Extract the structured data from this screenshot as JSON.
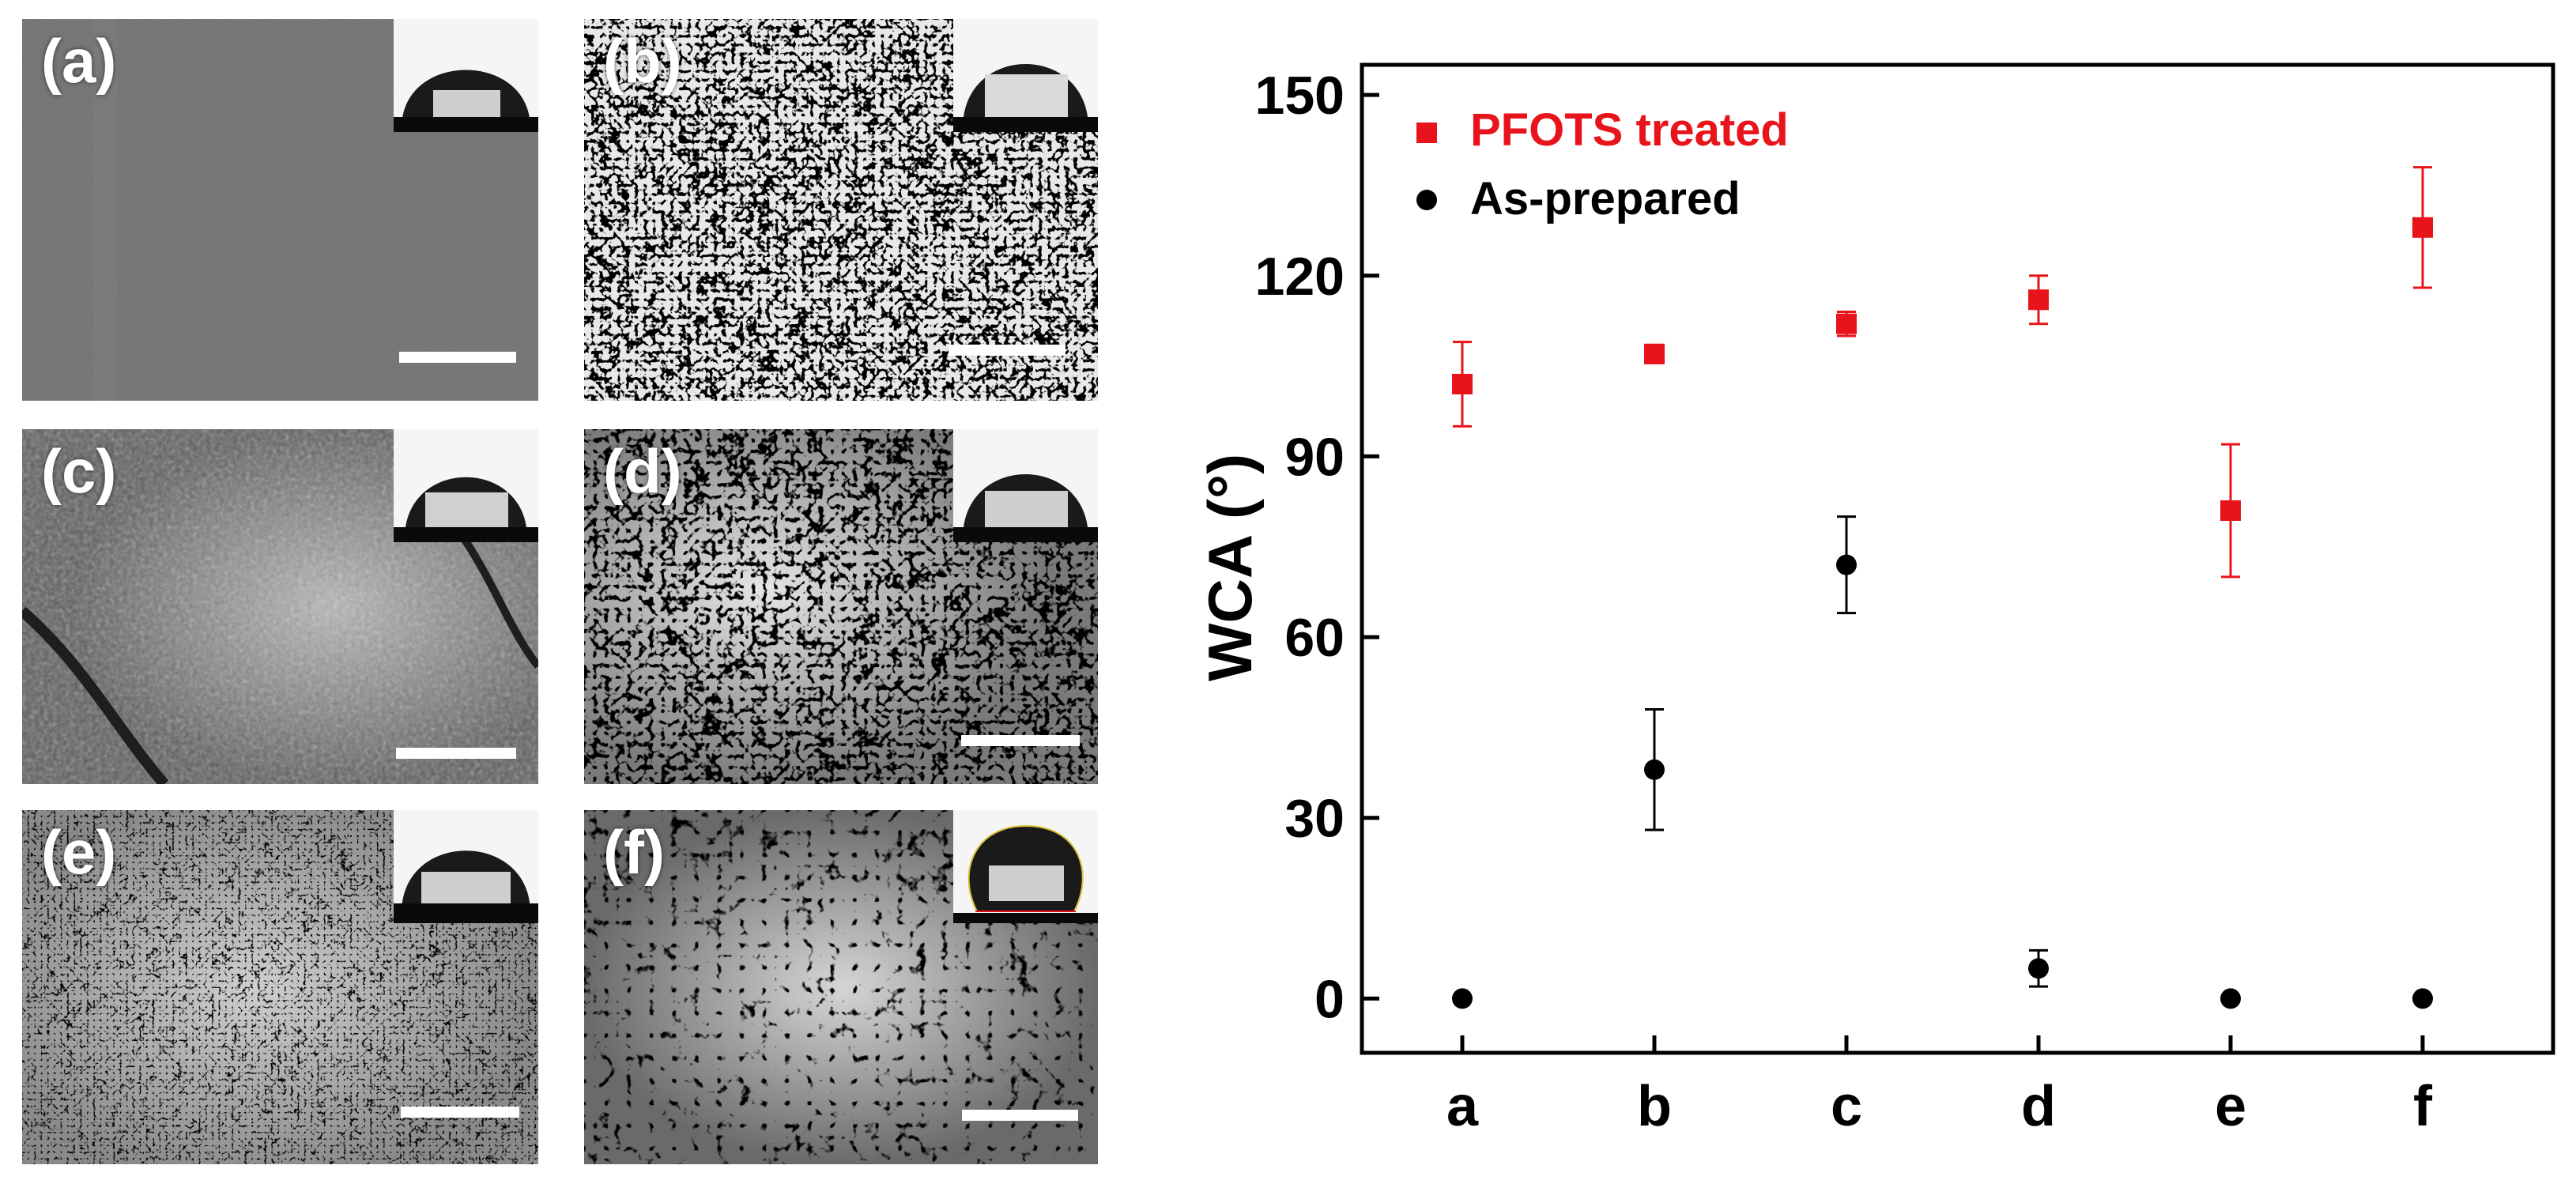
{
  "panels": [
    {
      "id": "a",
      "label": "(a)",
      "texture": "smooth"
    },
    {
      "id": "b",
      "label": "(b)",
      "texture": "porous"
    },
    {
      "id": "c",
      "label": "(c)",
      "texture": "fine-wrinkled"
    },
    {
      "id": "d",
      "label": "(d)",
      "texture": "worm-like"
    },
    {
      "id": "e",
      "label": "(e)",
      "texture": "flake-like"
    },
    {
      "id": "f",
      "label": "(f)",
      "texture": "coarse-flower"
    }
  ],
  "chart_data": {
    "type": "scatter",
    "categories": [
      "a",
      "b",
      "c",
      "d",
      "e",
      "f"
    ],
    "ylabel": "WCA (°)",
    "xlabel": "",
    "ylim": [
      -9,
      155
    ],
    "yticks": [
      0,
      30,
      60,
      90,
      120,
      150
    ],
    "legend_position": "top-left",
    "series": [
      {
        "name": "PFOTS treated",
        "marker": "square",
        "color": "#e8141b",
        "values": [
          102,
          107,
          112,
          116,
          81,
          128
        ],
        "errors": [
          7,
          1.5,
          2,
          4,
          11,
          10
        ]
      },
      {
        "name": "As-prepared",
        "marker": "circle",
        "color": "#000000",
        "values": [
          0,
          38,
          72,
          5,
          0,
          0
        ],
        "errors": [
          0,
          10,
          8,
          3,
          0,
          0
        ]
      }
    ]
  }
}
